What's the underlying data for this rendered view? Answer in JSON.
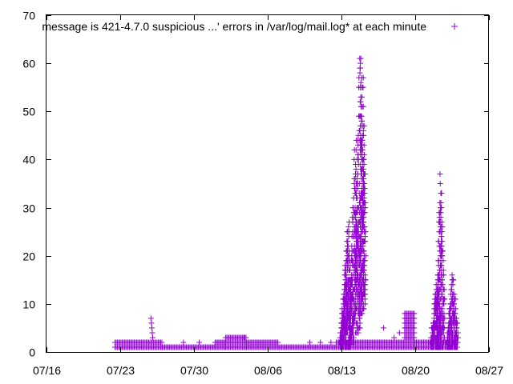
{
  "chart_data": {
    "type": "scatter",
    "title": "",
    "xlabel": "",
    "ylabel": "",
    "x_axis_type": "date",
    "xlim": [
      "2023-07-16",
      "2023-08-27"
    ],
    "ylim": [
      0,
      70
    ],
    "x_ticks": [
      {
        "date": "2023-07-16",
        "label": "07/16"
      },
      {
        "date": "2023-07-23",
        "label": "07/23"
      },
      {
        "date": "2023-07-30",
        "label": "07/30"
      },
      {
        "date": "2023-08-06",
        "label": "08/06"
      },
      {
        "date": "2023-08-13",
        "label": "08/13"
      },
      {
        "date": "2023-08-20",
        "label": "08/20"
      },
      {
        "date": "2023-08-27",
        "label": "08/27"
      }
    ],
    "y_ticks": [
      0,
      10,
      20,
      30,
      40,
      50,
      60,
      70
    ],
    "grid": false,
    "legend": {
      "placement": "top-right",
      "marker": "+"
    },
    "colors": {
      "series": "#9400d3",
      "axes": "#000000"
    },
    "series": [
      {
        "name": "message is 421-4.7.0 suspicious ...' errors in /var/log/mail.log* at each minute",
        "marker": "+",
        "bands": [
          {
            "x_start": "2023-07-22T12:00",
            "x_end": "2023-07-27T00:00",
            "y_min": 1,
            "y_max": 2
          },
          {
            "x_start": "2023-07-27T00:00",
            "x_end": "2023-08-01T00:00",
            "y_min": 1,
            "y_max": 1
          },
          {
            "x_start": "2023-08-01T00:00",
            "x_end": "2023-08-02T00:00",
            "y_min": 1,
            "y_max": 2
          },
          {
            "x_start": "2023-08-02T00:00",
            "x_end": "2023-08-04T00:00",
            "y_min": 1,
            "y_max": 3
          },
          {
            "x_start": "2023-08-04T00:00",
            "x_end": "2023-08-07T00:00",
            "y_min": 1,
            "y_max": 2
          },
          {
            "x_start": "2023-08-07T00:00",
            "x_end": "2023-08-12T12:00",
            "y_min": 1,
            "y_max": 1
          },
          {
            "x_start": "2023-08-12T12:00",
            "x_end": "2023-08-19T00:00",
            "y_min": 1,
            "y_max": 2
          },
          {
            "x_start": "2023-08-19T00:00",
            "x_end": "2023-08-20T00:00",
            "y_min": 1,
            "y_max": 8
          },
          {
            "x_start": "2023-08-20T00:00",
            "x_end": "2023-08-24T00:00",
            "y_min": 1,
            "y_max": 2
          }
        ],
        "points": [
          {
            "x": "2023-07-25T22:00",
            "y": 7
          },
          {
            "x": "2023-07-25T23:00",
            "y": 6
          },
          {
            "x": "2023-07-26T00:00",
            "y": 5
          },
          {
            "x": "2023-07-26T01:00",
            "y": 4
          },
          {
            "x": "2023-07-26T02:00",
            "y": 3
          },
          {
            "x": "2023-07-29T00:00",
            "y": 2
          },
          {
            "x": "2023-07-30T12:00",
            "y": 2
          },
          {
            "x": "2023-08-03T18:00",
            "y": 3
          },
          {
            "x": "2023-08-10T00:00",
            "y": 2
          },
          {
            "x": "2023-08-11T00:00",
            "y": 2
          },
          {
            "x": "2023-08-12T00:00",
            "y": 2
          },
          {
            "x": "2023-08-17T00:00",
            "y": 5
          },
          {
            "x": "2023-08-18T00:00",
            "y": 3
          },
          {
            "x": "2023-08-18T12:00",
            "y": 4
          }
        ],
        "spikes": [
          {
            "x_start": "2023-08-12T20:00",
            "x_end": "2023-08-13T22:00",
            "base": 2,
            "peak": 18
          },
          {
            "x_start": "2023-08-13T00:00",
            "x_end": "2023-08-14T04:00",
            "base": 5,
            "peak": 27
          },
          {
            "x_start": "2023-08-13T18:00",
            "x_end": "2023-08-14T18:00",
            "base": 10,
            "peak": 45
          },
          {
            "x_start": "2023-08-14T06:00",
            "x_end": "2023-08-15T04:00",
            "base": 20,
            "peak": 62
          },
          {
            "x_start": "2023-08-14T18:00",
            "x_end": "2023-08-15T06:00",
            "base": 25,
            "peak": 58
          },
          {
            "x_start": "2023-08-21T12:00",
            "x_end": "2023-08-22T12:00",
            "base": 2,
            "peak": 15
          },
          {
            "x_start": "2023-08-22T00:00",
            "x_end": "2023-08-22T18:00",
            "base": 5,
            "peak": 37
          },
          {
            "x_start": "2023-08-23T00:00",
            "x_end": "2023-08-24T00:00",
            "base": 2,
            "peak": 16
          }
        ]
      }
    ]
  }
}
